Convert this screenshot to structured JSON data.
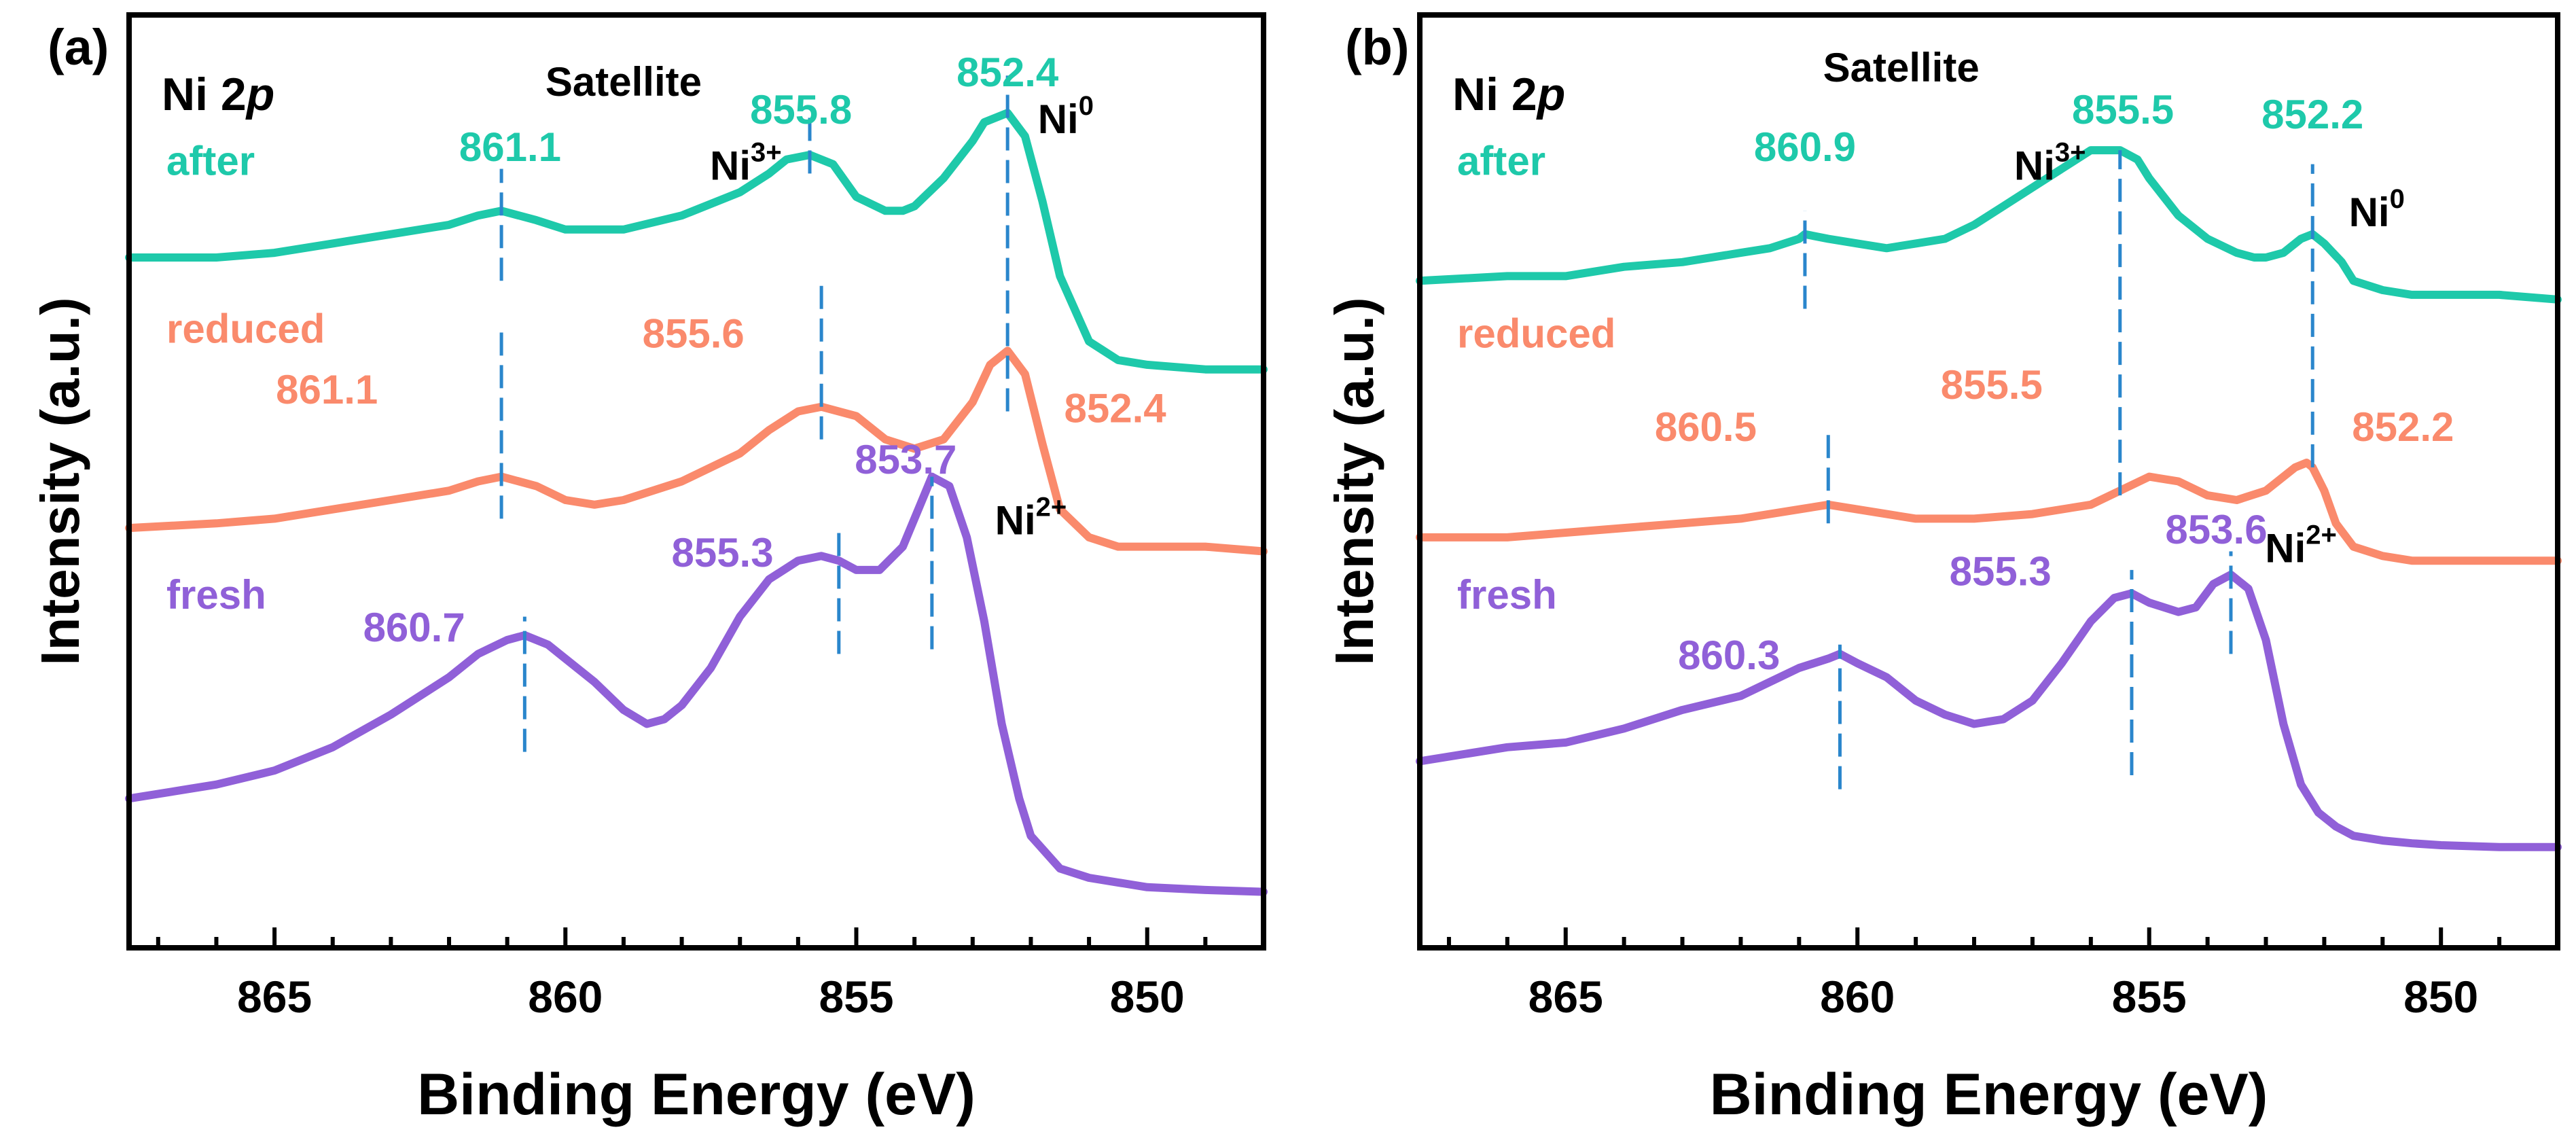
{
  "chart_data": [
    {
      "type": "line",
      "panel_label": "(a)",
      "title": "Ni 2p",
      "title_prefix": "Ni 2",
      "title_italic": "p",
      "xlabel": "Binding Energy (eV)",
      "ylabel": "Intensity (a.u.)",
      "xlim": [
        867.5,
        848.0
      ],
      "ylim": [
        0.0,
        1.0
      ],
      "x_ticks": [
        865,
        860,
        855,
        850
      ],
      "x_tick_labels": [
        "865",
        "860",
        "855",
        "850"
      ],
      "header_labels": [
        {
          "id": "satellite",
          "text": "Satellite",
          "x": 859.0,
          "y": 0.925,
          "color": "#000000"
        },
        {
          "id": "ni3",
          "base": "Ni",
          "sup": "3+",
          "x": 856.9,
          "y": 0.835,
          "color": "#000000"
        },
        {
          "id": "ni0",
          "base": "Ni",
          "sup": "0",
          "x": 851.4,
          "y": 0.885,
          "color": "#000000"
        },
        {
          "id": "ni2",
          "base": "Ni",
          "sup": "2+",
          "x": 852.0,
          "y": 0.455,
          "color": "#000000"
        }
      ],
      "series": [
        {
          "name": "after",
          "color": "#1ec9aa",
          "legend_y": 0.84,
          "x": [
            867.5,
            866,
            865,
            864,
            863,
            862,
            861.5,
            861.1,
            860.5,
            860,
            859,
            858,
            857,
            856.5,
            856.2,
            855.8,
            855.4,
            855,
            854.5,
            854.2,
            854,
            853.5,
            853,
            852.8,
            852.4,
            852.1,
            851.8,
            851.5,
            851,
            850.5,
            850,
            849,
            848
          ],
          "y": [
            0.74,
            0.74,
            0.745,
            0.755,
            0.765,
            0.775,
            0.785,
            0.79,
            0.78,
            0.77,
            0.77,
            0.785,
            0.81,
            0.83,
            0.845,
            0.85,
            0.84,
            0.805,
            0.79,
            0.79,
            0.795,
            0.825,
            0.865,
            0.885,
            0.895,
            0.87,
            0.8,
            0.72,
            0.65,
            0.63,
            0.625,
            0.62,
            0.62
          ]
        },
        {
          "name": "reduced",
          "color": "#fa8a6c",
          "legend_y": 0.66,
          "x": [
            867.5,
            866,
            865,
            864,
            863,
            862,
            861.5,
            861.1,
            860.5,
            860,
            859.5,
            859,
            858,
            857,
            856.5,
            856,
            855.6,
            855,
            854.5,
            854,
            853.5,
            853,
            852.7,
            852.4,
            852.1,
            851.8,
            851.5,
            851,
            850.5,
            850,
            849,
            848
          ],
          "y": [
            0.45,
            0.455,
            0.46,
            0.47,
            0.48,
            0.49,
            0.5,
            0.505,
            0.495,
            0.48,
            0.475,
            0.48,
            0.5,
            0.53,
            0.555,
            0.575,
            0.58,
            0.57,
            0.545,
            0.535,
            0.545,
            0.585,
            0.625,
            0.64,
            0.615,
            0.54,
            0.47,
            0.44,
            0.43,
            0.43,
            0.43,
            0.425
          ]
        },
        {
          "name": "fresh",
          "color": "#9060d8",
          "legend_y": 0.375,
          "x": [
            867.5,
            866.5,
            866,
            865,
            864,
            863,
            862,
            861.5,
            861,
            860.7,
            860.3,
            860,
            859.5,
            859,
            858.6,
            858.3,
            858,
            857.5,
            857,
            856.5,
            856,
            855.6,
            855.3,
            855,
            854.6,
            854.2,
            853.9,
            853.7,
            853.4,
            853.1,
            852.8,
            852.5,
            852.2,
            852,
            851.5,
            851,
            850.5,
            850,
            849,
            848
          ],
          "y": [
            0.16,
            0.17,
            0.175,
            0.19,
            0.215,
            0.25,
            0.29,
            0.315,
            0.33,
            0.335,
            0.325,
            0.31,
            0.285,
            0.255,
            0.24,
            0.245,
            0.26,
            0.3,
            0.355,
            0.395,
            0.415,
            0.42,
            0.415,
            0.405,
            0.405,
            0.43,
            0.475,
            0.505,
            0.495,
            0.44,
            0.35,
            0.24,
            0.16,
            0.12,
            0.085,
            0.075,
            0.07,
            0.065,
            0.062,
            0.06
          ]
        }
      ],
      "peak_markers": [
        {
          "series": "after",
          "x": 861.1,
          "y1": 0.715,
          "y2": 0.835,
          "label": "861.1",
          "label_x": 860.95,
          "label_y": 0.855,
          "color": "#1ec9aa"
        },
        {
          "series": "after",
          "x": 855.8,
          "y1": 0.83,
          "y2": 0.89,
          "label": "855.8",
          "label_x": 855.95,
          "label_y": 0.895,
          "color": "#1ec9aa"
        },
        {
          "series": "after",
          "x": 852.4,
          "y1": 0.575,
          "y2": 0.935,
          "label": "852.4",
          "label_x": 852.4,
          "label_y": 0.935,
          "color": "#1ec9aa"
        },
        {
          "series": "reduced",
          "x": 861.1,
          "y1": 0.46,
          "y2": 0.66,
          "label": "861.1",
          "label_x": 864.1,
          "label_y": 0.595,
          "color": "#fa8a6c"
        },
        {
          "series": "reduced",
          "x": 855.6,
          "y1": 0.545,
          "y2": 0.71,
          "label": "855.6",
          "label_x": 857.8,
          "label_y": 0.655,
          "color": "#fa8a6c"
        },
        {
          "series": "reduced",
          "x": 852.4,
          "label": "852.4",
          "label_x": 850.55,
          "label_y": 0.575,
          "color": "#fa8a6c"
        },
        {
          "series": "fresh",
          "x": 860.7,
          "y1": 0.21,
          "y2": 0.355,
          "label": "860.7",
          "label_x": 862.6,
          "label_y": 0.34,
          "color": "#9060d8"
        },
        {
          "series": "fresh",
          "x": 855.3,
          "y1": 0.315,
          "y2": 0.445,
          "label": "855.3",
          "label_x": 857.3,
          "label_y": 0.42,
          "color": "#9060d8"
        },
        {
          "series": "fresh",
          "x": 853.7,
          "y1": 0.32,
          "y2": 0.505,
          "label": "853.7",
          "label_x": 854.15,
          "label_y": 0.52,
          "color": "#9060d8"
        }
      ]
    },
    {
      "type": "line",
      "panel_label": "(b)",
      "title": "Ni 2p",
      "title_prefix": "Ni 2",
      "title_italic": "p",
      "xlabel": "Binding Energy (eV)",
      "ylabel": "Intensity (a.u.)",
      "xlim": [
        867.5,
        848.0
      ],
      "ylim": [
        0.0,
        1.0
      ],
      "x_ticks": [
        865,
        860,
        855,
        850
      ],
      "x_tick_labels": [
        "865",
        "860",
        "855",
        "850"
      ],
      "header_labels": [
        {
          "id": "satellite",
          "text": "Satellite",
          "x": 859.25,
          "y": 0.94,
          "color": "#000000"
        },
        {
          "id": "ni3",
          "base": "Ni",
          "sup": "3+",
          "x": 856.7,
          "y": 0.835,
          "color": "#000000"
        },
        {
          "id": "ni0",
          "base": "Ni",
          "sup": "0",
          "x": 851.1,
          "y": 0.785,
          "color": "#000000"
        },
        {
          "id": "ni2",
          "base": "Ni",
          "sup": "2+",
          "x": 852.4,
          "y": 0.425,
          "color": "#000000"
        }
      ],
      "series": [
        {
          "name": "after",
          "color": "#1ec9aa",
          "legend_y": 0.84,
          "x": [
            867.5,
            866,
            865,
            864,
            863,
            862,
            861.5,
            861,
            860.9,
            860.5,
            860,
            859.5,
            859,
            858.5,
            858,
            857.5,
            857,
            856.5,
            856,
            855.5,
            855.2,
            855,
            854.5,
            854,
            853.5,
            853.2,
            853,
            852.7,
            852.4,
            852.2,
            852,
            851.7,
            851.5,
            851,
            850.5,
            850,
            849,
            848
          ],
          "y": [
            0.715,
            0.72,
            0.72,
            0.73,
            0.735,
            0.745,
            0.75,
            0.76,
            0.765,
            0.76,
            0.755,
            0.75,
            0.755,
            0.76,
            0.775,
            0.795,
            0.815,
            0.835,
            0.855,
            0.855,
            0.845,
            0.825,
            0.785,
            0.76,
            0.745,
            0.74,
            0.74,
            0.745,
            0.76,
            0.765,
            0.755,
            0.735,
            0.715,
            0.705,
            0.7,
            0.7,
            0.7,
            0.695
          ]
        },
        {
          "name": "reduced",
          "color": "#fa8a6c",
          "legend_y": 0.655,
          "x": [
            867.5,
            866,
            865,
            864,
            863,
            862,
            861,
            860.5,
            860,
            859.5,
            859,
            858,
            857,
            856,
            855.5,
            855,
            854.5,
            854,
            853.5,
            853,
            852.5,
            852.3,
            852.2,
            852,
            851.8,
            851.5,
            851,
            850.5,
            850,
            849,
            848
          ],
          "y": [
            0.44,
            0.44,
            0.445,
            0.45,
            0.455,
            0.46,
            0.47,
            0.475,
            0.47,
            0.465,
            0.46,
            0.46,
            0.465,
            0.475,
            0.49,
            0.505,
            0.5,
            0.485,
            0.48,
            0.49,
            0.515,
            0.52,
            0.515,
            0.49,
            0.455,
            0.43,
            0.42,
            0.415,
            0.415,
            0.415,
            0.415
          ]
        },
        {
          "name": "fresh",
          "color": "#9060d8",
          "legend_y": 0.375,
          "x": [
            867.5,
            866,
            865,
            864,
            863,
            862,
            861.5,
            861,
            860.5,
            860.3,
            860,
            859.5,
            859,
            858.5,
            858,
            857.5,
            857,
            856.5,
            856,
            855.6,
            855.3,
            855,
            854.5,
            854.2,
            853.9,
            853.6,
            853.3,
            853,
            852.7,
            852.4,
            852.1,
            851.8,
            851.5,
            851,
            850.5,
            850,
            849,
            848
          ],
          "y": [
            0.2,
            0.215,
            0.22,
            0.235,
            0.255,
            0.27,
            0.285,
            0.3,
            0.31,
            0.315,
            0.305,
            0.29,
            0.265,
            0.25,
            0.24,
            0.245,
            0.265,
            0.305,
            0.35,
            0.375,
            0.38,
            0.37,
            0.36,
            0.365,
            0.39,
            0.4,
            0.385,
            0.33,
            0.24,
            0.175,
            0.145,
            0.13,
            0.12,
            0.115,
            0.112,
            0.11,
            0.108,
            0.108
          ]
        }
      ],
      "peak_markers": [
        {
          "series": "after",
          "x": 860.9,
          "y1": 0.685,
          "y2": 0.79,
          "label": "860.9",
          "label_x": 860.9,
          "label_y": 0.855,
          "color": "#1ec9aa"
        },
        {
          "series": "after",
          "x": 855.5,
          "y1": 0.485,
          "y2": 0.855,
          "label": "855.5",
          "label_x": 855.45,
          "label_y": 0.895,
          "color": "#1ec9aa"
        },
        {
          "series": "after",
          "x": 852.2,
          "y1": 0.515,
          "y2": 0.84,
          "label": "852.2",
          "label_x": 852.2,
          "label_y": 0.89,
          "color": "#1ec9aa"
        },
        {
          "series": "reduced",
          "x": 860.5,
          "y1": 0.455,
          "y2": 0.555,
          "label": "860.5",
          "label_x": 862.6,
          "label_y": 0.555,
          "color": "#fa8a6c"
        },
        {
          "series": "reduced",
          "x": 855.5,
          "label": "855.5",
          "label_x": 857.7,
          "label_y": 0.6,
          "color": "#fa8a6c"
        },
        {
          "series": "reduced",
          "x": 852.2,
          "label": "852.2",
          "label_x": 850.65,
          "label_y": 0.555,
          "color": "#fa8a6c"
        },
        {
          "series": "fresh",
          "x": 860.3,
          "y1": 0.17,
          "y2": 0.325,
          "label": "860.3",
          "label_x": 862.2,
          "label_y": 0.31,
          "color": "#9060d8"
        },
        {
          "series": "fresh",
          "x": 855.3,
          "y1": 0.185,
          "y2": 0.405,
          "label": "855.3",
          "label_x": 857.55,
          "label_y": 0.4,
          "color": "#9060d8"
        },
        {
          "series": "fresh",
          "x": 853.6,
          "y1": 0.315,
          "y2": 0.425,
          "label": "853.6",
          "label_x": 853.85,
          "label_y": 0.445,
          "color": "#9060d8"
        }
      ]
    }
  ]
}
